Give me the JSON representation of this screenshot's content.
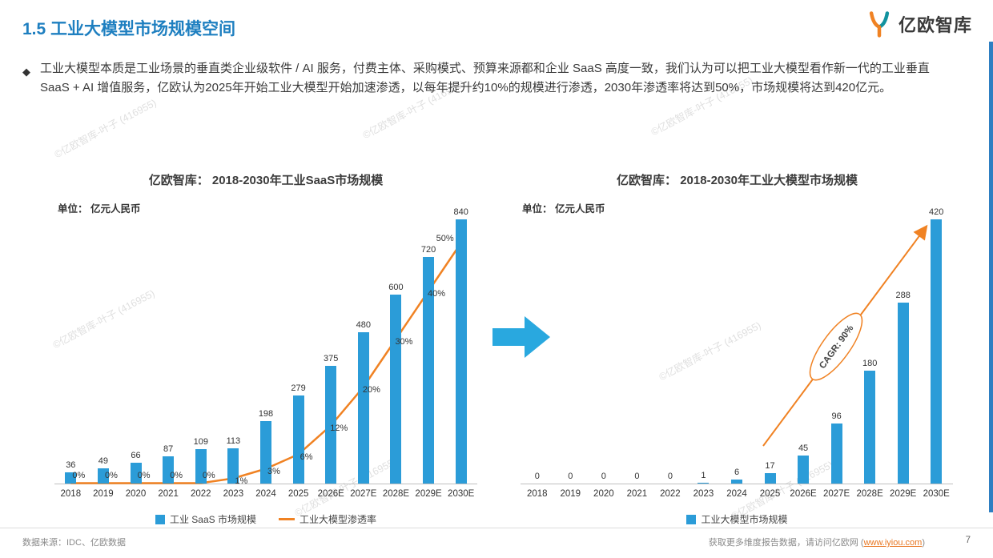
{
  "page": {
    "title": "1.5 工业大模型市场规模空间",
    "logo_text": "亿欧智库",
    "bullet_glyph": "◆",
    "body_paragraph": "工业大模型本质是工业场景的垂直类企业级软件 / AI 服务，付费主体、采购模式、预算来源都和企业 SaaS 高度一致，我们认为可以把工业大模型看作新一代的工业垂直 SaaS + AI 增值服务，亿欧认为2025年开始工业大模型开始加速渗透，以每年提升约10%的规模进行渗透，2030年渗透率将达到50%，市场规模将达到420亿元。",
    "watermark": "©亿欧智库-叶子 (416955)"
  },
  "colors": {
    "accent_blue": "#1E7FC0",
    "bar_blue": "#2B9CD8",
    "line_orange": "#F08223",
    "arrow_blue": "#29A8DF",
    "edge_stripe": "#2E7FC2",
    "link_orange": "#E87722"
  },
  "chart_data": [
    {
      "type": "bar",
      "title": "亿欧智库： 2018-2030年工业SaaS市场规模",
      "unit_label": "单位： 亿元人民币",
      "categories": [
        "2018",
        "2019",
        "2020",
        "2021",
        "2022",
        "2023",
        "2024",
        "2025",
        "2026E",
        "2027E",
        "2028E",
        "2029E",
        "2030E"
      ],
      "series": [
        {
          "name": "工业 SaaS 市场规模",
          "type": "bar",
          "values": [
            36,
            49,
            66,
            87,
            109,
            113,
            198,
            279,
            375,
            480,
            600,
            720,
            840
          ]
        },
        {
          "name": "工业大模型渗透率",
          "type": "line",
          "values": [
            0,
            0,
            0,
            0,
            0,
            1,
            3,
            6,
            12,
            20,
            30,
            40,
            50
          ],
          "unit": "%"
        }
      ],
      "ylim": [
        0,
        880
      ],
      "grid": false,
      "legend_position": "bottom"
    },
    {
      "type": "bar",
      "title": "亿欧智库： 2018-2030年工业大模型市场规模",
      "unit_label": "单位： 亿元人民币",
      "categories": [
        "2018",
        "2019",
        "2020",
        "2021",
        "2022",
        "2023",
        "2024",
        "2025",
        "2026E",
        "2027E",
        "2028E",
        "2029E",
        "2030E"
      ],
      "series": [
        {
          "name": "工业大模型市场规模",
          "type": "bar",
          "values": [
            0,
            0,
            0,
            0,
            0,
            1,
            6,
            17,
            45,
            96,
            180,
            288,
            420
          ]
        }
      ],
      "annotation": "CAGR: 90%",
      "ylim": [
        0,
        440
      ],
      "grid": false,
      "legend_position": "bottom"
    }
  ],
  "footer": {
    "source": "数据来源：IDC、亿欧数据",
    "cta_prefix": "获取更多维度报告数据，请访问亿欧网 (",
    "cta_link": "www.iyiou.com",
    "cta_suffix": ")",
    "page_number": "7"
  }
}
